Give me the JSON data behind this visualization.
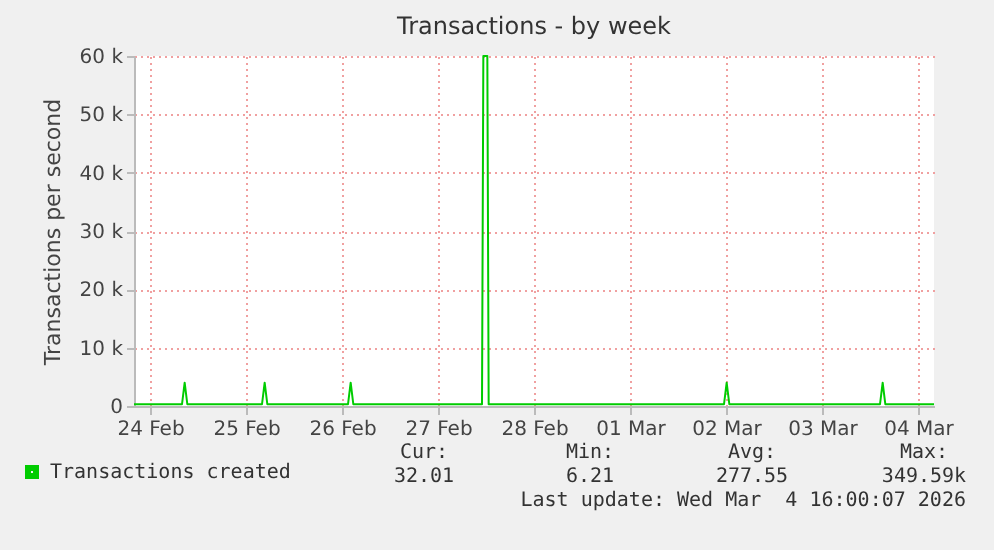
{
  "chart_data": {
    "type": "line",
    "title": "Transactions - by week",
    "ylabel": "Transactions per second",
    "x": [
      "2026-02-23T20:00",
      "2026-02-24T08:00",
      "2026-02-24T08:40",
      "2026-02-24T09:20",
      "2026-02-25T04:00",
      "2026-02-25T04:40",
      "2026-02-25T05:20",
      "2026-02-26T01:30",
      "2026-02-26T02:10",
      "2026-02-26T02:50",
      "2026-02-27T11:00",
      "2026-02-27T11:20",
      "2026-02-27T12:20",
      "2026-02-27T12:40",
      "2026-03-01T23:30",
      "2026-03-02T00:10",
      "2026-03-02T00:50",
      "2026-03-03T14:30",
      "2026-03-03T15:10",
      "2026-03-03T15:50",
      "2026-03-04T04:00"
    ],
    "series": [
      {
        "name": "Transactions created",
        "color": "#00cc00",
        "values": [
          300,
          300,
          4000,
          300,
          300,
          4000,
          300,
          300,
          4000,
          300,
          300,
          60000,
          60000,
          300,
          300,
          4000,
          300,
          300,
          4000,
          300,
          300
        ]
      }
    ],
    "xlim": [
      "2026-02-23T20:00",
      "2026-03-04T04:00"
    ],
    "xticks": [
      {
        "value": "2026-02-24T00:00",
        "label": "24 Feb"
      },
      {
        "value": "2026-02-25T00:00",
        "label": "25 Feb"
      },
      {
        "value": "2026-02-26T00:00",
        "label": "26 Feb"
      },
      {
        "value": "2026-02-27T00:00",
        "label": "27 Feb"
      },
      {
        "value": "2026-02-28T00:00",
        "label": "28 Feb"
      },
      {
        "value": "2026-03-01T00:00",
        "label": "01 Mar"
      },
      {
        "value": "2026-03-02T00:00",
        "label": "02 Mar"
      },
      {
        "value": "2026-03-03T00:00",
        "label": "03 Mar"
      },
      {
        "value": "2026-03-04T00:00",
        "label": "04 Mar"
      }
    ],
    "ylim": [
      0,
      60000
    ],
    "yticks": [
      0,
      {
        "value": 10000,
        "label": "10 k"
      },
      {
        "value": 20000,
        "label": "20 k"
      },
      {
        "value": 30000,
        "label": "30 k"
      },
      {
        "value": 40000,
        "label": "40 k"
      },
      {
        "value": 50000,
        "label": "50 k"
      },
      {
        "value": 60000,
        "label": "60 k"
      }
    ],
    "grid": true,
    "legend": "bottom left",
    "marker": "none",
    "line_style": "solid",
    "annotations": [
      "Cur:",
      "Min:",
      "Avg:",
      "Max:",
      "32.01",
      "6.21",
      "277.55",
      "349.59k",
      "Last update: Wed Mar  4 16:00:07 2026"
    ]
  }
}
